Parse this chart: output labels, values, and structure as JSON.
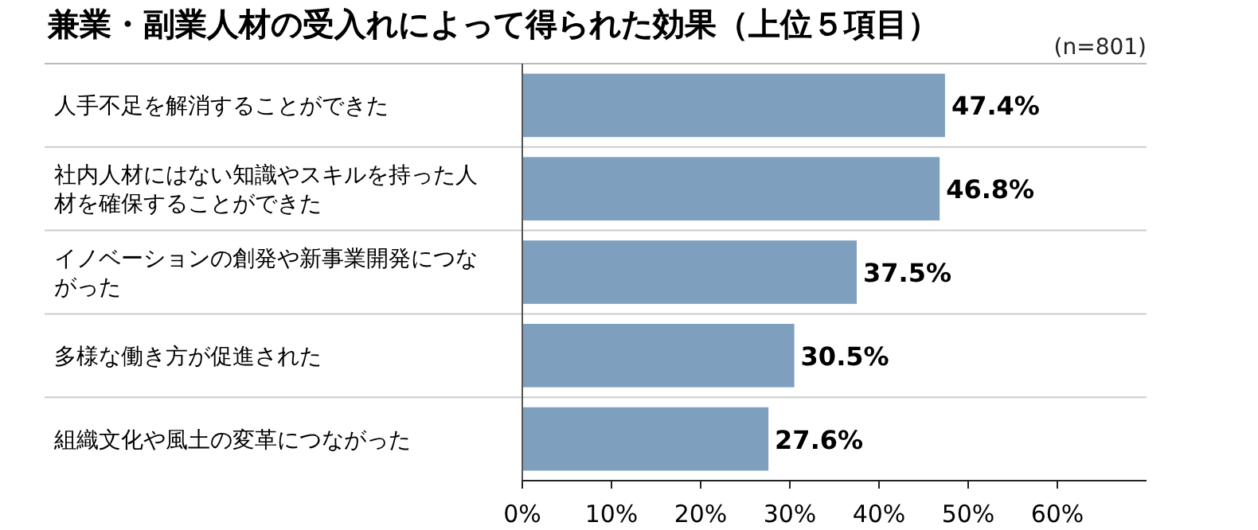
{
  "chart_data": {
    "type": "bar",
    "orientation": "horizontal",
    "title": "兼業・副業人材の受入れによって得られた効果（上位５項目）",
    "subtitle": "(n=801)",
    "categories": [
      "人手不足を解消することができた",
      "社内人材にはない知識やスキルを持った人材を確保することができた",
      "イノベーションの創発や新事業開発につながった",
      "多様な働き方が促進された",
      "組織文化や風土の変革につながった"
    ],
    "values": [
      47.4,
      46.8,
      37.5,
      30.5,
      27.6
    ],
    "value_labels": [
      "47.4%",
      "46.8%",
      "37.5%",
      "30.5%",
      "27.6%"
    ],
    "color": "#7f9fbf",
    "xlim": [
      0,
      70
    ],
    "xticks": [
      {
        "value": 0,
        "label": "0%"
      },
      {
        "value": 10,
        "label": "10%"
      },
      {
        "value": 20,
        "label": "20%"
      },
      {
        "value": 30,
        "label": "30%"
      },
      {
        "value": 40,
        "label": "40%"
      },
      {
        "value": 50,
        "label": "50%"
      },
      {
        "value": 60,
        "label": "60%"
      }
    ],
    "grid": false
  }
}
